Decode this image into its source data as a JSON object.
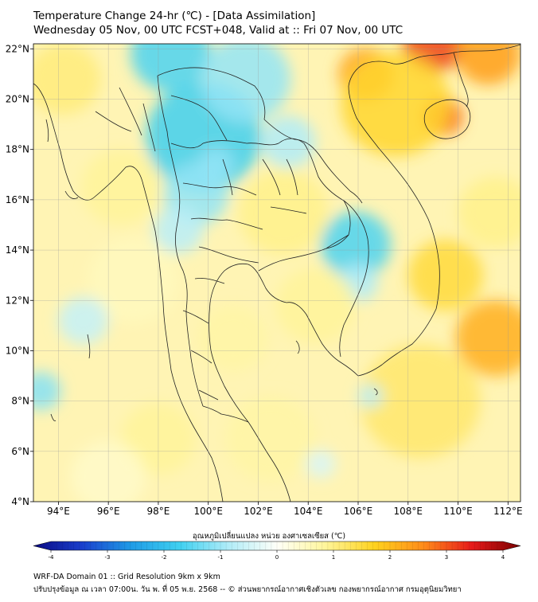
{
  "header": {
    "title": "Temperature Change 24-hr (℃) - [Data Assimilation]",
    "subtitle": "Wednesday 05 Nov, 00 UTC FCST+048, Valid at :: Fri 07 Nov, 00 UTC"
  },
  "map": {
    "lon_range": [
      93,
      112.5
    ],
    "lat_range": [
      4,
      22.2
    ],
    "lon_ticks": [
      {
        "value": 94,
        "label": "94°E"
      },
      {
        "value": 96,
        "label": "96°E"
      },
      {
        "value": 98,
        "label": "98°E"
      },
      {
        "value": 100,
        "label": "100°E"
      },
      {
        "value": 102,
        "label": "102°E"
      },
      {
        "value": 104,
        "label": "104°E"
      },
      {
        "value": 106,
        "label": "106°E"
      },
      {
        "value": 108,
        "label": "108°E"
      },
      {
        "value": 110,
        "label": "110°E"
      },
      {
        "value": 112,
        "label": "112°E"
      }
    ],
    "lat_ticks": [
      {
        "value": 22,
        "label": "22°N"
      },
      {
        "value": 20,
        "label": "20°N"
      },
      {
        "value": 18,
        "label": "18°N"
      },
      {
        "value": 16,
        "label": "16°N"
      },
      {
        "value": 14,
        "label": "14°N"
      },
      {
        "value": 12,
        "label": "12°N"
      },
      {
        "value": 10,
        "label": "10°N"
      },
      {
        "value": 8,
        "label": "8°N"
      },
      {
        "value": 6,
        "label": "6°N"
      },
      {
        "value": 4,
        "label": "4°N"
      }
    ],
    "grid": true,
    "blobs": [
      {
        "lon": 99.8,
        "lat": 18.5,
        "r": 2.3,
        "v": -1.6
      },
      {
        "lon": 98.5,
        "lat": 21.8,
        "r": 1.6,
        "v": -1.5
      },
      {
        "lon": 101.5,
        "lat": 20.8,
        "r": 1.8,
        "v": -1.0
      },
      {
        "lon": 99.5,
        "lat": 16.2,
        "r": 1.3,
        "v": -1.0
      },
      {
        "lon": 98.8,
        "lat": 14.8,
        "r": 1.0,
        "v": -0.7
      },
      {
        "lon": 103.2,
        "lat": 18.3,
        "r": 1.1,
        "v": -0.8
      },
      {
        "lon": 105.9,
        "lat": 14.2,
        "r": 1.4,
        "v": -1.5
      },
      {
        "lon": 106.0,
        "lat": 12.7,
        "r": 0.8,
        "v": -0.8
      },
      {
        "lon": 100.3,
        "lat": 17.4,
        "r": 0.7,
        "v": -1.0
      },
      {
        "lon": 96.5,
        "lat": 16.5,
        "r": 1.6,
        "v": 0.8
      },
      {
        "lon": 97.0,
        "lat": 12.8,
        "r": 1.8,
        "v": 0.5
      },
      {
        "lon": 93.3,
        "lat": 8.4,
        "r": 0.8,
        "v": -1.1
      },
      {
        "lon": 95.0,
        "lat": 11.2,
        "r": 1.0,
        "v": -0.6
      },
      {
        "lon": 94.2,
        "lat": 20.8,
        "r": 1.5,
        "v": 1.0
      },
      {
        "lon": 109.4,
        "lat": 19.3,
        "r": 0.8,
        "v": 2.6
      },
      {
        "lon": 109.0,
        "lat": 22.2,
        "r": 1.2,
        "v": 2.9
      },
      {
        "lon": 111.2,
        "lat": 21.8,
        "r": 1.3,
        "v": 2.2
      },
      {
        "lon": 106.3,
        "lat": 21.0,
        "r": 1.1,
        "v": 2.1
      },
      {
        "lon": 107.5,
        "lat": 19.8,
        "r": 2.2,
        "v": 1.5
      },
      {
        "lon": 111.5,
        "lat": 10.5,
        "r": 1.6,
        "v": 2.0
      },
      {
        "lon": 109.5,
        "lat": 13.0,
        "r": 1.5,
        "v": 1.4
      },
      {
        "lon": 108.5,
        "lat": 8.0,
        "r": 2.4,
        "v": 1.1
      },
      {
        "lon": 103.0,
        "lat": 15.5,
        "r": 1.8,
        "v": 0.9
      },
      {
        "lon": 104.3,
        "lat": 11.8,
        "r": 1.6,
        "v": 0.8
      },
      {
        "lon": 101.0,
        "lat": 10.5,
        "r": 1.4,
        "v": 0.7
      },
      {
        "lon": 102.5,
        "lat": 6.5,
        "r": 1.8,
        "v": 0.7
      },
      {
        "lon": 98.0,
        "lat": 6.5,
        "r": 1.5,
        "v": 0.8
      },
      {
        "lon": 96.0,
        "lat": 5.0,
        "r": 1.5,
        "v": 0.4
      },
      {
        "lon": 104.5,
        "lat": 5.5,
        "r": 0.6,
        "v": -0.4
      },
      {
        "lon": 106.5,
        "lat": 8.2,
        "r": 0.5,
        "v": -0.7
      },
      {
        "lon": 111.5,
        "lat": 15.5,
        "r": 1.5,
        "v": 0.9
      }
    ],
    "scale_colors": [
      "#0a0a82",
      "#1a3fcc",
      "#1f9be6",
      "#3fd0f0",
      "#b0ecf8",
      "#fffff8",
      "#fff59a",
      "#ffd21e",
      "#ff8c1a",
      "#e61a1a",
      "#780000"
    ],
    "border_color": "#222222"
  },
  "colorbar": {
    "label": "อุณหภูมิเปลี่ยนแปลง หน่วย องศาเซลเซียส (℃)",
    "ticks": [
      {
        "value": -4,
        "label": "-4"
      },
      {
        "value": -3,
        "label": "-3"
      },
      {
        "value": -2,
        "label": "-2"
      },
      {
        "value": -1,
        "label": "-1"
      },
      {
        "value": 0,
        "label": "0"
      },
      {
        "value": 1,
        "label": "1"
      },
      {
        "value": 2,
        "label": "2"
      },
      {
        "value": 3,
        "label": "3"
      },
      {
        "value": 4,
        "label": "4"
      }
    ],
    "min": -4,
    "max": 4
  },
  "footer": {
    "line1": "WRF-DA Domain 01 :: Grid Resolution 9km x 9km",
    "line2": "ปรับปรุงข้อมูล ณ เวลา 07:00น. วัน พ. ที่ 05 พ.ย. 2568 -- © ส่วนพยากรณ์อากาศเชิงตัวเลข กองพยากรณ์อากาศ กรมอุตุนิยมวิทยา"
  }
}
